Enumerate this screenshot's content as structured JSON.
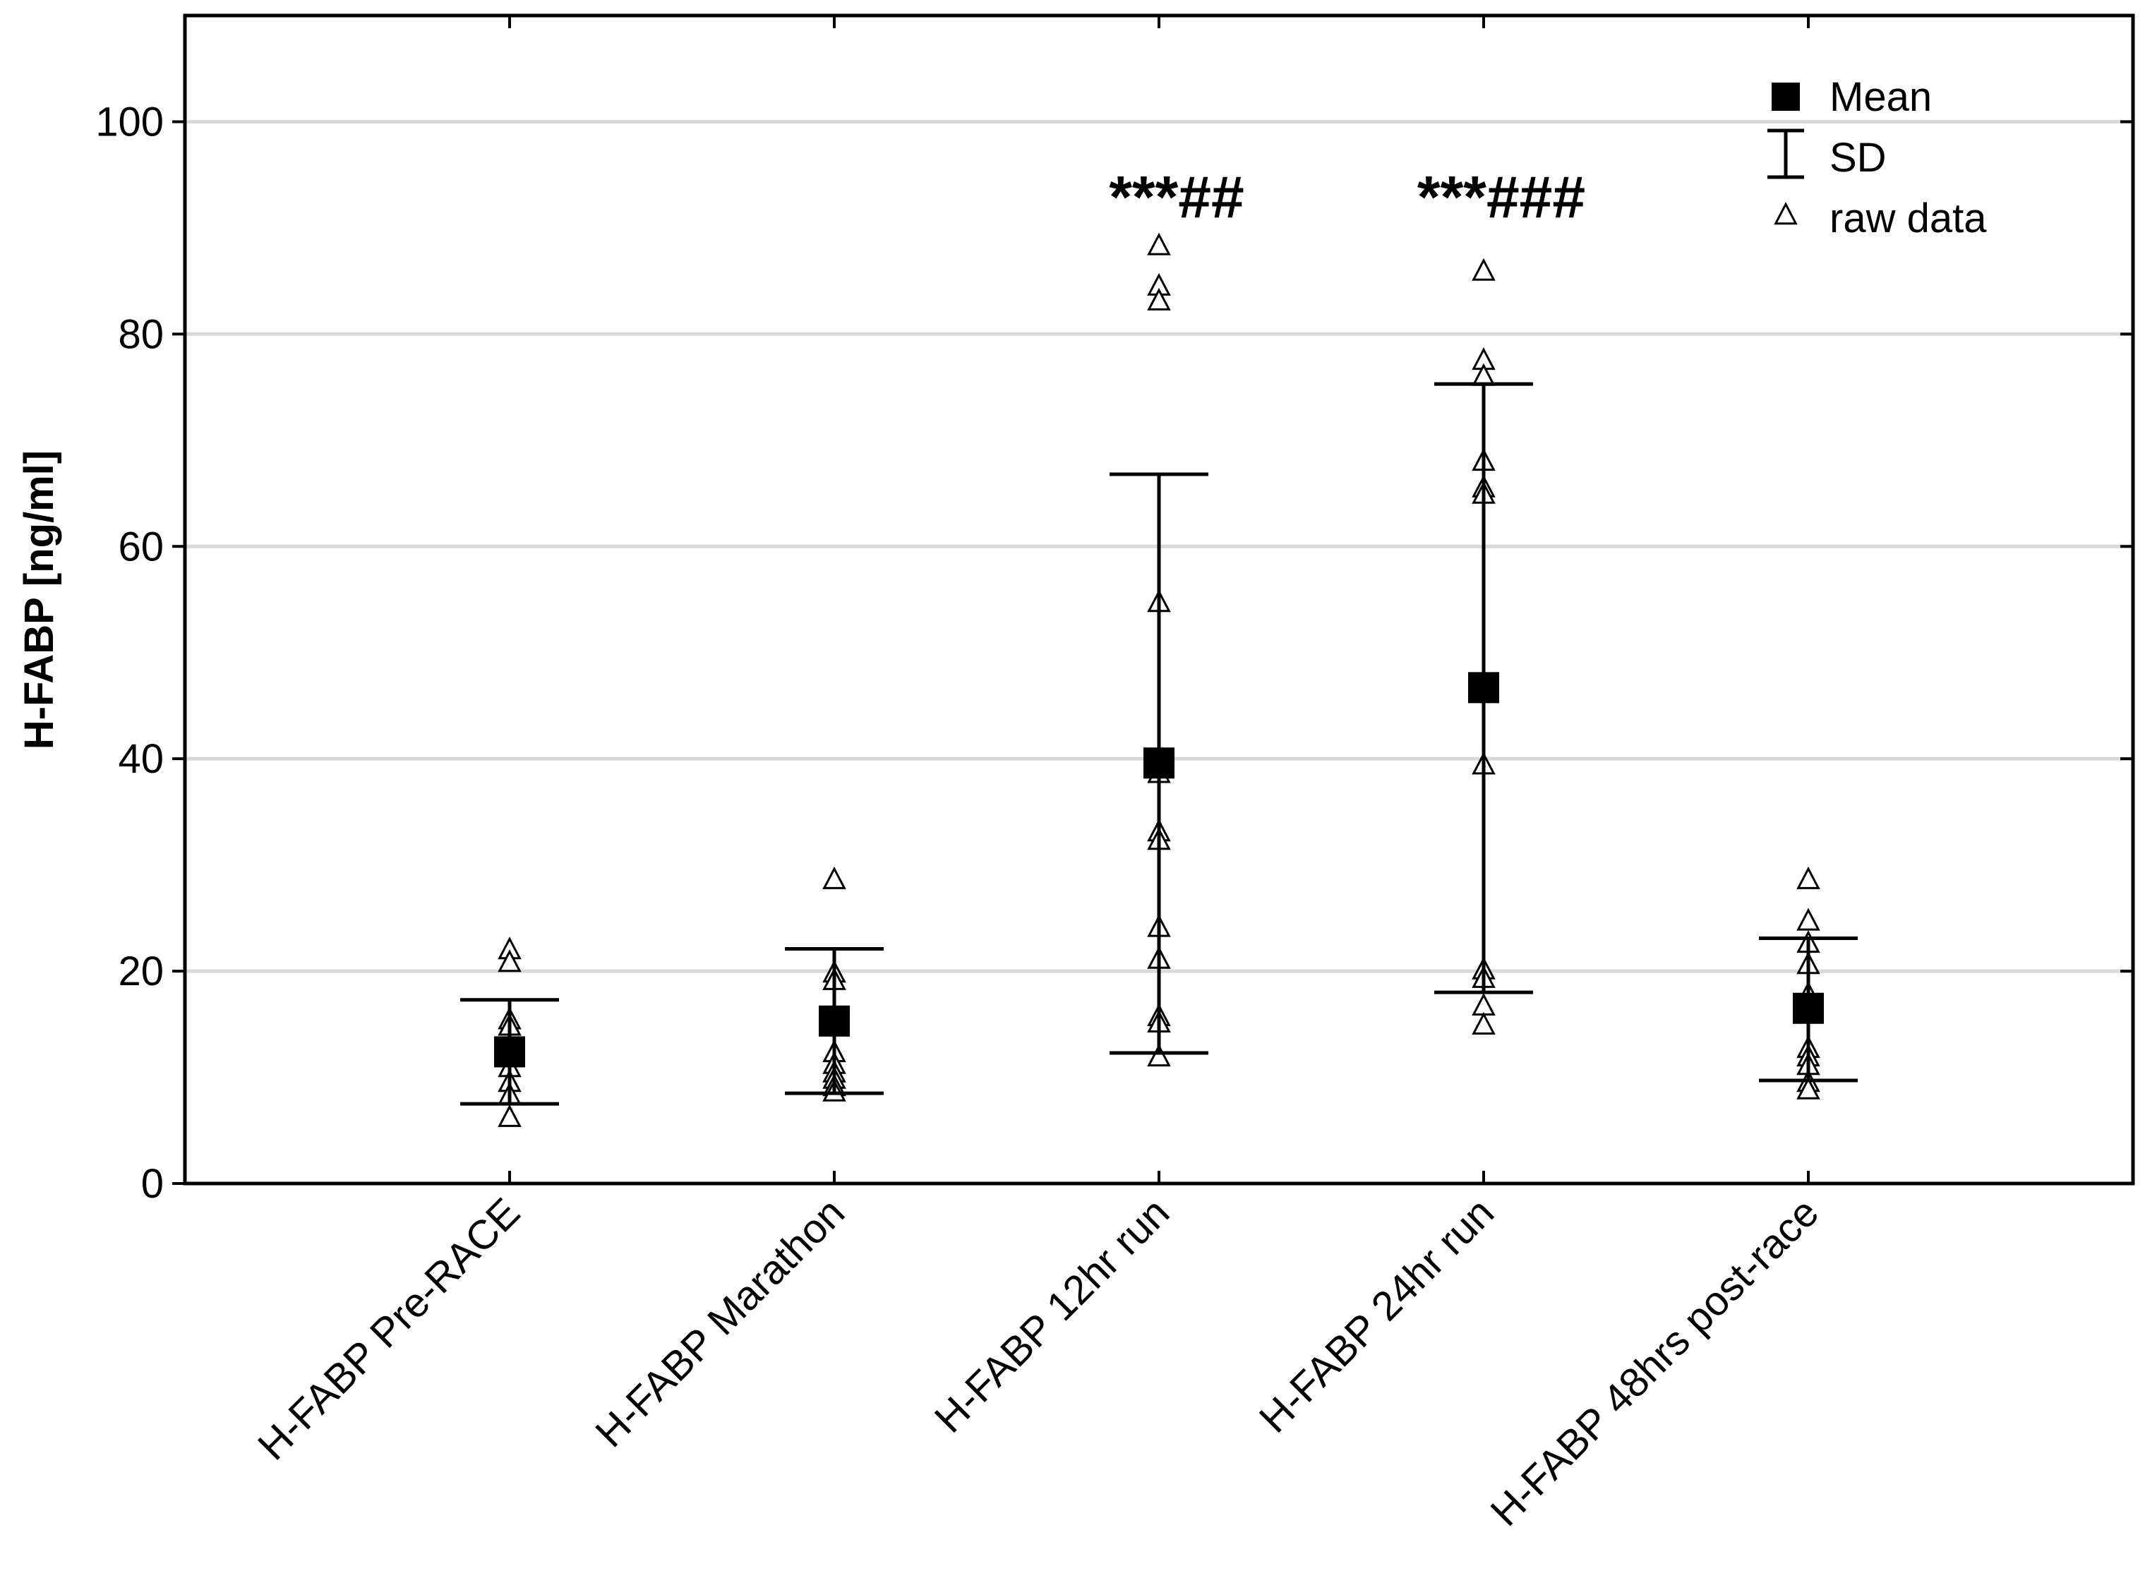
{
  "chart_data": {
    "type": "scatter",
    "title": "",
    "xlabel": "",
    "ylabel": "H-FABP [ng/ml]",
    "ylim": [
      0,
      110
    ],
    "yticks": [
      0,
      20,
      40,
      60,
      80,
      100
    ],
    "grid": true,
    "legend_position": "top-right",
    "legend": [
      {
        "symbol": "filled-square",
        "label": "Mean"
      },
      {
        "symbol": "error-bar",
        "label": "SD"
      },
      {
        "symbol": "open-triangle",
        "label": "raw data"
      }
    ],
    "categories": [
      "H-FABP Pre-RACE",
      "H-FABP Marathon",
      "H-FABP 12hr run",
      "H-FABP 24hr run",
      "H-FABP 48hrs post-race"
    ],
    "series": [
      {
        "name": "Mean",
        "values": [
          12.4,
          15.3,
          39.6,
          46.7,
          16.5
        ]
      },
      {
        "name": "SD lower",
        "values": [
          7.5,
          8.5,
          12.3,
          18.0,
          9.7
        ]
      },
      {
        "name": "SD upper",
        "values": [
          17.3,
          22.1,
          66.8,
          75.3,
          23.1
        ]
      }
    ],
    "raw_data": [
      [
        22.0,
        20.8,
        15.4,
        14.8,
        12.1,
        10.9,
        9.5,
        8.3,
        6.2
      ],
      [
        28.6,
        19.8,
        19.1,
        12.3,
        11.2,
        10.4,
        9.8,
        9.1,
        8.6
      ],
      [
        88.3,
        84.5,
        83.1,
        54.7,
        38.6,
        33.1,
        32.3,
        24.1,
        21.1,
        15.7,
        15.1,
        11.9
      ],
      [
        85.9,
        77.5,
        76.0,
        68.0,
        65.5,
        64.9,
        39.4,
        20.1,
        19.3,
        16.7,
        14.9
      ],
      [
        28.6,
        24.7,
        22.6,
        20.6,
        17.8,
        12.7,
        11.9,
        11.1,
        9.5,
        8.8
      ]
    ],
    "annotations": [
      {
        "category": "H-FABP 12hr run",
        "text": "***##",
        "y": 93
      },
      {
        "category": "H-FABP 24hr run",
        "text": "***###",
        "y": 93
      }
    ]
  }
}
